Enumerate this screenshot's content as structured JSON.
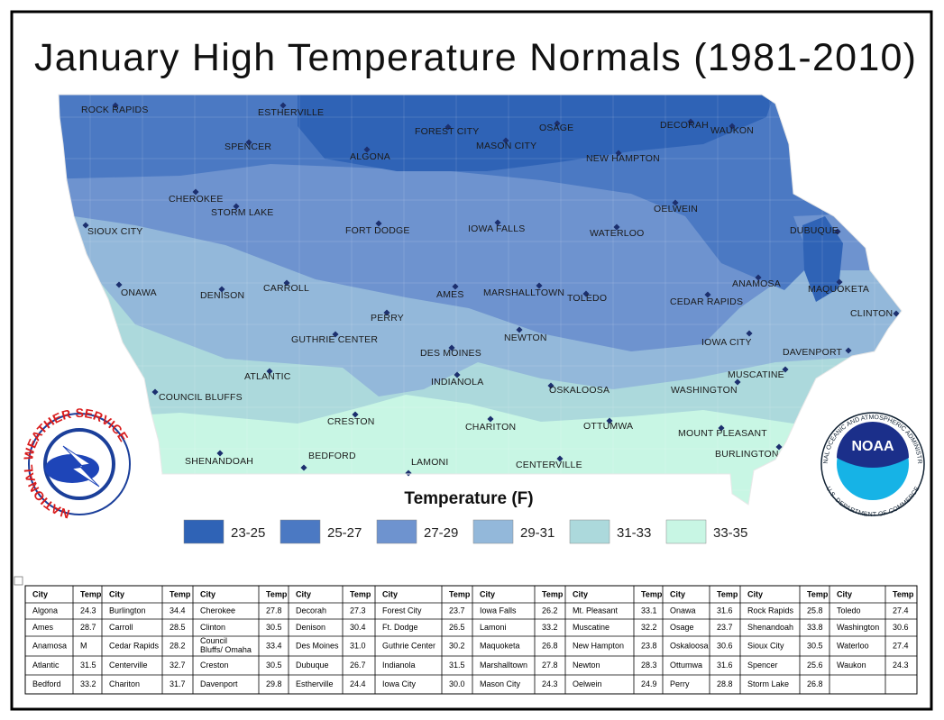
{
  "title": "January High Temperature Normals (1981-2010)",
  "map": {
    "cities": [
      "ROCK RAPIDS",
      "ESTHERVILLE",
      "SPENCER",
      "ALGONA",
      "FOREST CITY",
      "MASON CITY",
      "OSAGE",
      "DECORAH",
      "WAUKON",
      "NEW HAMPTON",
      "CHEROKEE",
      "STORM LAKE",
      "OELWEIN",
      "SIOUX CITY",
      "FORT DODGE",
      "IOWA FALLS",
      "WATERLOO",
      "DUBUQUE",
      "ONAWA",
      "DENISON",
      "CARROLL",
      "AMES",
      "MARSHALLTOWN",
      "TOLEDO",
      "ANAMOSA",
      "CEDAR RAPIDS",
      "MAQUOKETA",
      "CLINTON",
      "PERRY",
      "GUTHRIE CENTER",
      "NEWTON",
      "DES MOINES",
      "IOWA CITY",
      "DAVENPORT",
      "ATLANTIC",
      "INDIANOLA",
      "MUSCATINE",
      "COUNCIL BLUFFS",
      "OSKALOOSA",
      "WASHINGTON",
      "CRESTON",
      "CHARITON",
      "OTTUMWA",
      "MOUNT PLEASANT",
      "SHENANDOAH",
      "BEDFORD",
      "LAMONI",
      "CENTERVILLE",
      "BURLINGTON"
    ]
  },
  "legend": {
    "title": "Temperature (F)",
    "items": [
      {
        "label": "23-25",
        "color": "#2f63b6"
      },
      {
        "label": "25-27",
        "color": "#4b79c3"
      },
      {
        "label": "27-29",
        "color": "#6e93cf"
      },
      {
        "label": "29-31",
        "color": "#93b8da"
      },
      {
        "label": "31-33",
        "color": "#acd9dc"
      },
      {
        "label": "33-35",
        "color": "#c8f6e4"
      }
    ]
  },
  "logos": {
    "nws": "NATIONAL WEATHER SERVICE",
    "noaa": {
      "name": "NOAA",
      "ring_top": "NATIONAL OCEANIC AND ATMOSPHERIC ADMINISTRATION",
      "ring_bottom": "U.S. DEPARTMENT OF COMMERCE"
    }
  },
  "table": {
    "header": [
      "City",
      "Temp"
    ],
    "rows": [
      [
        "Algona",
        "24.3",
        "Burlington",
        "34.4",
        "Cherokee",
        "27.8",
        "Decorah",
        "27.3",
        "Forest City",
        "23.7",
        "Iowa Falls",
        "26.2",
        "Mt. Pleasant",
        "33.1",
        "Onawa",
        "31.6",
        "Rock Rapids",
        "25.8",
        "Toledo",
        "27.4"
      ],
      [
        "Ames",
        "28.7",
        "Carroll",
        "28.5",
        "Clinton",
        "30.5",
        "Denison",
        "30.4",
        "Ft. Dodge",
        "26.5",
        "Lamoni",
        "33.2",
        "Muscatine",
        "32.2",
        "Osage",
        "23.7",
        "Shenandoah",
        "33.8",
        "Washington",
        "30.6"
      ],
      [
        "Anamosa",
        "M",
        "Cedar Rapids",
        "28.2",
        "Council Bluffs/ Omaha",
        "33.4",
        "Des Moines",
        "31.0",
        "Guthrie Center",
        "30.2",
        "Maquoketa",
        "26.8",
        "New Hampton",
        "23.8",
        "Oskaloosa",
        "30.6",
        "Sioux City",
        "30.5",
        "Waterloo",
        "27.4"
      ],
      [
        "Atlantic",
        "31.5",
        "Centerville",
        "32.7",
        "Creston",
        "30.5",
        "Dubuque",
        "26.7",
        "Indianola",
        "31.5",
        "Marshalltown",
        "27.8",
        "Newton",
        "28.3",
        "Ottumwa",
        "31.6",
        "Spencer",
        "25.6",
        "Waukon",
        "24.3"
      ],
      [
        "Bedford",
        "33.2",
        "Chariton",
        "31.7",
        "Davenport",
        "29.8",
        "Estherville",
        "24.4",
        "Iowa City",
        "30.0",
        "Mason City",
        "24.3",
        "Oelwein",
        "24.9",
        "Perry",
        "28.8",
        "Storm Lake",
        "26.8"
      ]
    ]
  }
}
